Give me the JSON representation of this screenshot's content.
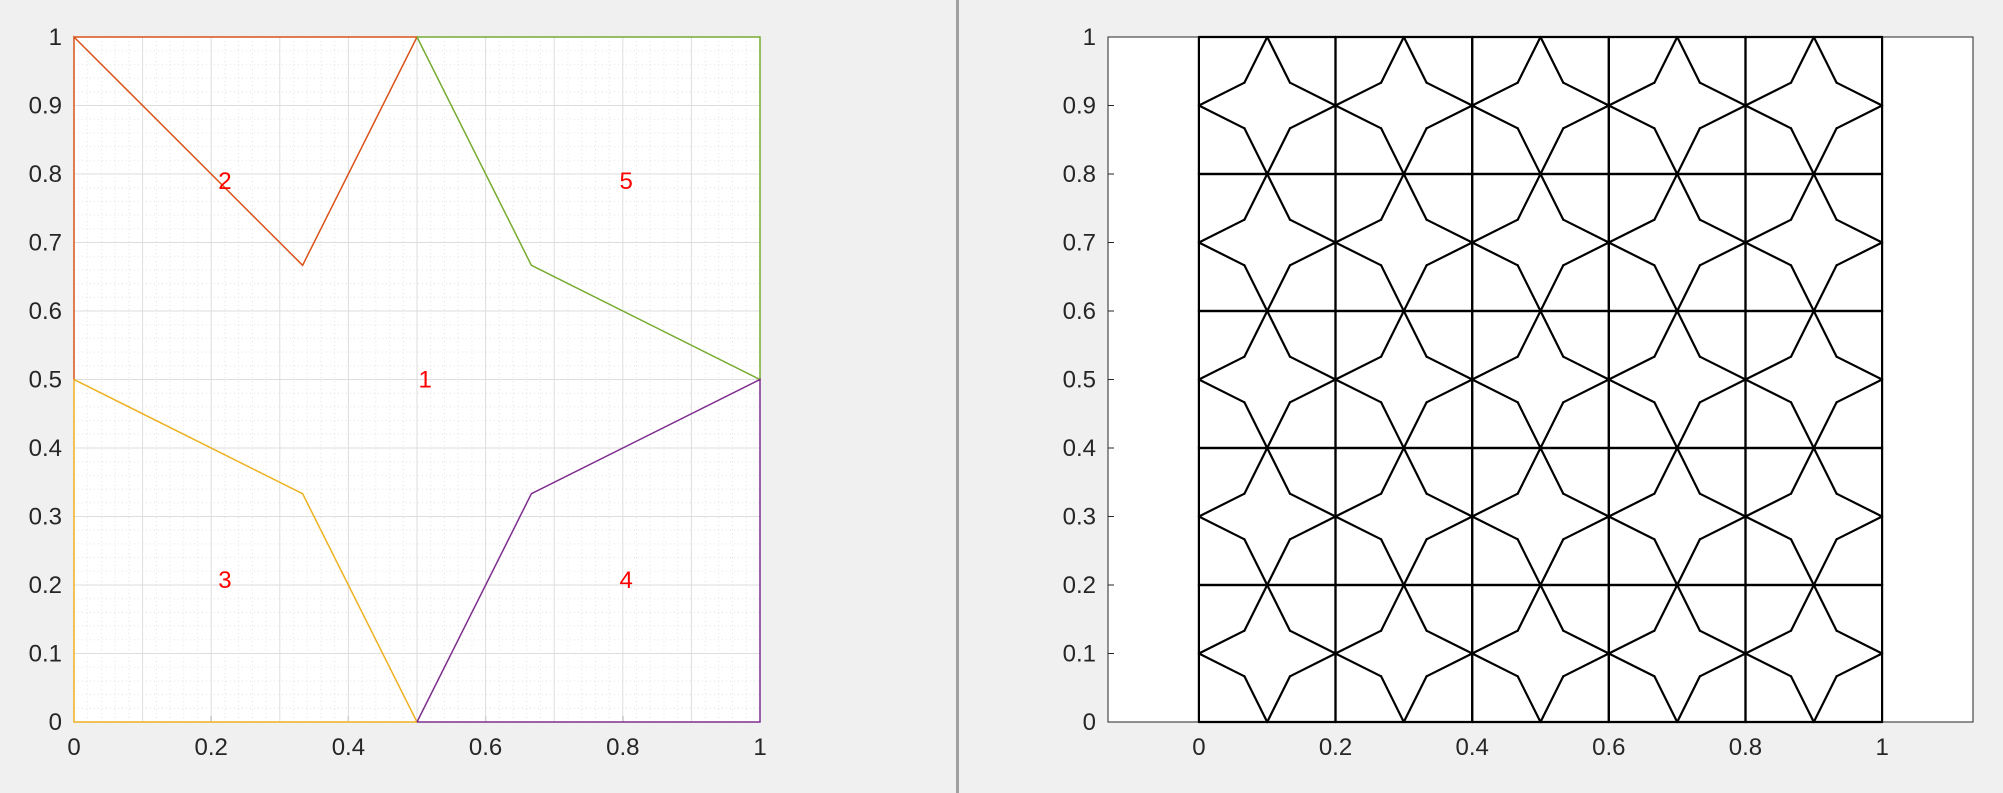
{
  "window": {
    "divider_color": "#a0a0a0",
    "background": "#f0f0f0"
  },
  "chart_data": [
    {
      "type": "line",
      "title": "",
      "xlabel": "",
      "ylabel": "",
      "xlim": [
        0,
        1
      ],
      "ylim": [
        0,
        1
      ],
      "xticks": [
        "0",
        "0.2",
        "0.4",
        "0.6",
        "0.8",
        "1"
      ],
      "xtick_values": [
        0,
        0.2,
        0.4,
        0.6,
        0.8,
        1
      ],
      "yticks": [
        "0",
        "0.1",
        "0.2",
        "0.3",
        "0.4",
        "0.5",
        "0.6",
        "0.7",
        "0.8",
        "0.9",
        "1"
      ],
      "ytick_values": [
        0,
        0.1,
        0.2,
        0.3,
        0.4,
        0.5,
        0.6,
        0.7,
        0.8,
        0.9,
        1
      ],
      "grid": "on (major and minor)",
      "legend": "none",
      "series": [
        {
          "id": "region-2",
          "color": "#d95319",
          "x": [
            0,
            0,
            0.3333,
            0.5,
            0
          ],
          "y": [
            0.5,
            1,
            0.6667,
            1,
            1
          ]
        },
        {
          "id": "region-5",
          "color": "#77ac30",
          "x": [
            0.5,
            0.6667,
            1,
            1,
            0.5
          ],
          "y": [
            1,
            0.6667,
            0.5,
            1,
            1
          ]
        },
        {
          "id": "region-3",
          "color": "#edb120",
          "x": [
            0,
            0.3333,
            0.5,
            0,
            0
          ],
          "y": [
            0.5,
            0.3333,
            0,
            0,
            0.5
          ]
        },
        {
          "id": "region-4",
          "color": "#7e2f8e",
          "x": [
            0.5,
            0.6667,
            1,
            1,
            0.5
          ],
          "y": [
            0,
            0.3333,
            0.5,
            0,
            0
          ]
        }
      ],
      "annotations": [
        {
          "text": "2",
          "x": 0.22,
          "y": 0.79,
          "color": "#ff0000"
        },
        {
          "text": "5",
          "x": 0.805,
          "y": 0.79,
          "color": "#ff0000"
        },
        {
          "text": "1",
          "x": 0.512,
          "y": 0.5,
          "color": "#ff0000"
        },
        {
          "text": "3",
          "x": 0.22,
          "y": 0.207,
          "color": "#ff0000"
        },
        {
          "text": "4",
          "x": 0.805,
          "y": 0.207,
          "color": "#ff0000"
        }
      ]
    },
    {
      "type": "line",
      "title": "",
      "xlabel": "",
      "ylabel": "",
      "xlim": [
        -0.133,
        1.133
      ],
      "ylim": [
        0,
        1
      ],
      "xticks": [
        "0",
        "0.2",
        "0.4",
        "0.6",
        "0.8",
        "1"
      ],
      "xtick_values": [
        0,
        0.2,
        0.4,
        0.6,
        0.8,
        1
      ],
      "yticks": [
        "0",
        "0.1",
        "0.2",
        "0.3",
        "0.4",
        "0.5",
        "0.6",
        "0.7",
        "0.8",
        "0.9",
        "1"
      ],
      "ytick_values": [
        0,
        0.1,
        0.2,
        0.3,
        0.4,
        0.5,
        0.6,
        0.7,
        0.8,
        0.9,
        1
      ],
      "grid": "off",
      "legend": "none",
      "line_color": "#000000",
      "description_of_mesh": "5x5 tiling of the star-partitioned unit cell over [0,1]x[0,1]",
      "tiling": {
        "cells_x": 5,
        "cells_y": 5,
        "domain": [
          0,
          1,
          0,
          1
        ]
      },
      "unit_cell_edges": [
        [
          [
            0,
            0.5
          ],
          [
            0.3333,
            0.6667
          ]
        ],
        [
          [
            0.3333,
            0.6667
          ],
          [
            0.5,
            1
          ]
        ],
        [
          [
            0.5,
            1
          ],
          [
            0.6667,
            0.6667
          ]
        ],
        [
          [
            0.6667,
            0.6667
          ],
          [
            1,
            0.5
          ]
        ],
        [
          [
            1,
            0.5
          ],
          [
            0.6667,
            0.3333
          ]
        ],
        [
          [
            0.6667,
            0.3333
          ],
          [
            0.5,
            0
          ]
        ],
        [
          [
            0.5,
            0
          ],
          [
            0.3333,
            0.3333
          ]
        ],
        [
          [
            0.3333,
            0.3333
          ],
          [
            0,
            0.5
          ]
        ],
        [
          [
            0,
            0
          ],
          [
            1,
            0
          ]
        ],
        [
          [
            1,
            0
          ],
          [
            1,
            1
          ]
        ],
        [
          [
            1,
            1
          ],
          [
            0,
            1
          ]
        ],
        [
          [
            0,
            1
          ],
          [
            0,
            0
          ]
        ]
      ]
    }
  ]
}
